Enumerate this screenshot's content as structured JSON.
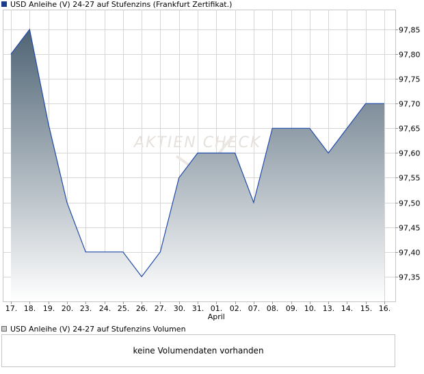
{
  "price_legend": {
    "label": "USD Anleihe (V) 24-27 auf Stufenzins (Frankfurt Zertifikat.)"
  },
  "volume_legend": {
    "label": "USD Anleihe (V) 24-27 auf Stufenzins Volumen"
  },
  "volume_panel": {
    "message": "keine Volumendaten vorhanden"
  },
  "watermark": {
    "text": "AKTIEN CHECK"
  },
  "colors": {
    "line": "#1f4aa8",
    "fill_top": "#4f6475",
    "fill_bottom": "#ffffff",
    "grid": "#d6d6d6",
    "border": "#c4c4c4"
  },
  "chart_data": {
    "type": "area",
    "x": [
      "17.",
      "18.",
      "19.",
      "20.",
      "23.",
      "24.",
      "25.",
      "26.",
      "27.",
      "30.",
      "31.",
      "01.",
      "02.",
      "07.",
      "08.",
      "09.",
      "10.",
      "13.",
      "14.",
      "15.",
      "16."
    ],
    "x_group_labels": [
      {
        "at": "01.",
        "label": "April"
      }
    ],
    "values": [
      97.8,
      97.85,
      97.66,
      97.5,
      97.4,
      97.4,
      97.4,
      97.35,
      97.4,
      97.55,
      97.6,
      97.6,
      97.6,
      97.5,
      97.65,
      97.65,
      97.65,
      97.6,
      97.65,
      97.7,
      97.7
    ],
    "ylim": [
      97.3,
      97.89
    ],
    "yticks": [
      "97,35",
      "97,40",
      "97,45",
      "97,50",
      "97,55",
      "97,60",
      "97,65",
      "97,70",
      "97,75",
      "97,80",
      "97,85"
    ],
    "yaxis_side": "right",
    "grid": true
  }
}
